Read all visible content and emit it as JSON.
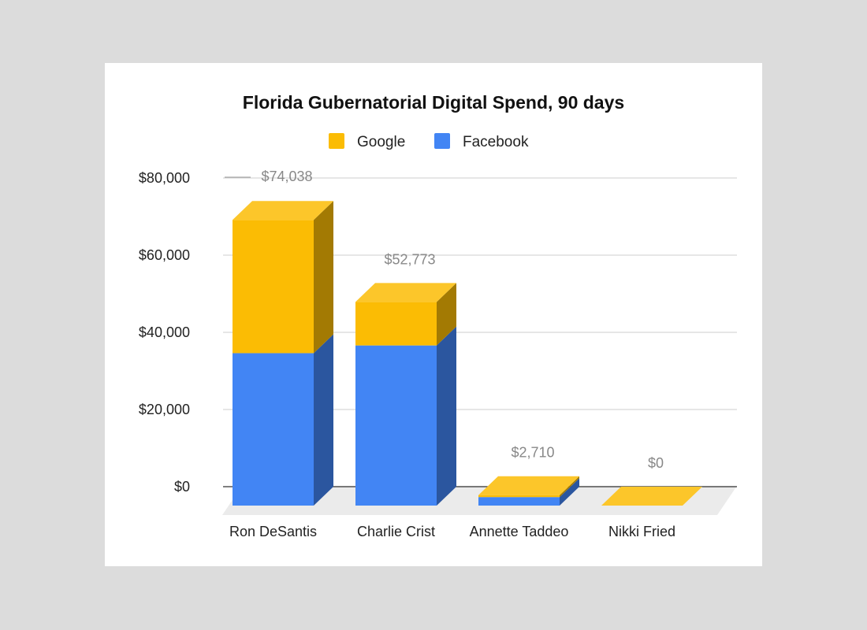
{
  "chart_data": {
    "type": "bar",
    "stacked": true,
    "style": "3d",
    "title": "Florida Gubernatorial Digital Spend, 90 days",
    "xlabel": "",
    "ylabel": "",
    "categories": [
      "Ron DeSantis",
      "Charlie Crist",
      "Annette Taddeo",
      "Nikki Fried"
    ],
    "series": [
      {
        "name": "Facebook",
        "color": "#4285f4",
        "values": [
          39500,
          41500,
          2200,
          0
        ]
      },
      {
        "name": "Google",
        "color": "#fbbc04",
        "values": [
          34538,
          11273,
          510,
          0
        ]
      }
    ],
    "totals": [
      "$74,038",
      "$52,773",
      "$2,710",
      "$0"
    ],
    "y_ticks": [
      "$0",
      "$20,000",
      "$40,000",
      "$60,000",
      "$80,000"
    ],
    "ylim": [
      0,
      80000
    ],
    "legend": {
      "position": "top",
      "entries": [
        {
          "label": "Google",
          "color": "#fbbc04"
        },
        {
          "label": "Facebook",
          "color": "#4285f4"
        }
      ]
    },
    "grid": true
  }
}
